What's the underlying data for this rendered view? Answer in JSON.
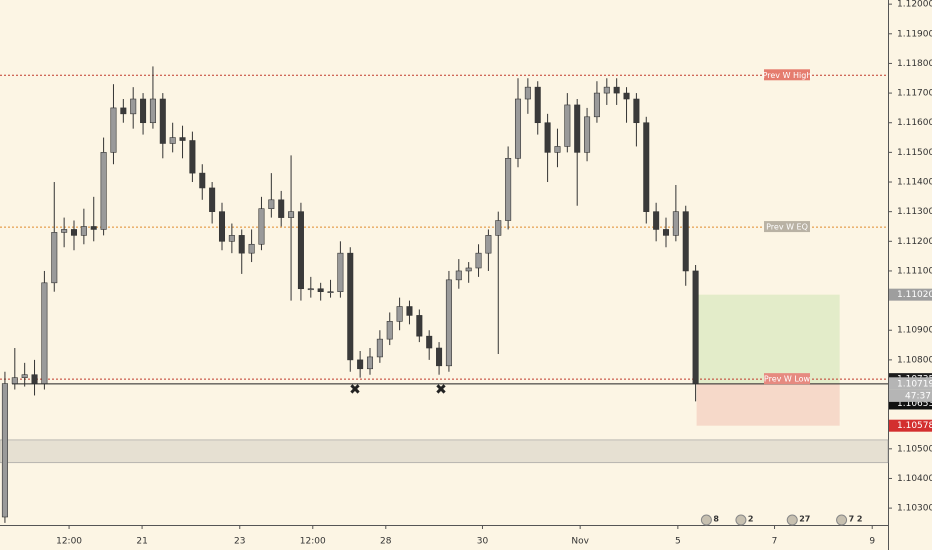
{
  "chart_data": {
    "type": "candlestick",
    "x": [
      0,
      1,
      2,
      3,
      4,
      5,
      6,
      7,
      8,
      9,
      10,
      11,
      12,
      13,
      14,
      15,
      16,
      17,
      18,
      19,
      20,
      21,
      22,
      23,
      24,
      25,
      26,
      27,
      28,
      29,
      30,
      31,
      32,
      33,
      34,
      35,
      36,
      37,
      38,
      39,
      40,
      41,
      42,
      43,
      44,
      45,
      46,
      47,
      48,
      49,
      50,
      51,
      52,
      53,
      54,
      55,
      56,
      57,
      58,
      59,
      60,
      61,
      62,
      63,
      64,
      65,
      66,
      67,
      68,
      69,
      70
    ],
    "candles": [
      [
        1.1027,
        1.1076,
        1.1025,
        1.1072
      ],
      [
        1.1072,
        1.1084,
        1.107,
        1.1074
      ],
      [
        1.1074,
        1.1079,
        1.1071,
        1.1075
      ],
      [
        1.1075,
        1.108,
        1.1068,
        1.1072
      ],
      [
        1.1072,
        1.111,
        1.107,
        1.1106
      ],
      [
        1.1106,
        1.114,
        1.1103,
        1.1123
      ],
      [
        1.1123,
        1.1128,
        1.1118,
        1.1124
      ],
      [
        1.1124,
        1.1127,
        1.1117,
        1.1122
      ],
      [
        1.1122,
        1.1131,
        1.1119,
        1.1125
      ],
      [
        1.1125,
        1.1135,
        1.112,
        1.1124
      ],
      [
        1.1124,
        1.1155,
        1.1122,
        1.115
      ],
      [
        1.115,
        1.1173,
        1.1146,
        1.1165
      ],
      [
        1.1165,
        1.1168,
        1.116,
        1.1163
      ],
      [
        1.1163,
        1.1172,
        1.1158,
        1.1168
      ],
      [
        1.1168,
        1.117,
        1.1156,
        1.116
      ],
      [
        1.116,
        1.1179,
        1.1158,
        1.1168
      ],
      [
        1.1168,
        1.117,
        1.1148,
        1.1153
      ],
      [
        1.1153,
        1.116,
        1.115,
        1.1155
      ],
      [
        1.1155,
        1.1159,
        1.1148,
        1.1154
      ],
      [
        1.1154,
        1.1157,
        1.114,
        1.1143
      ],
      [
        1.1143,
        1.1146,
        1.1134,
        1.1138
      ],
      [
        1.1138,
        1.114,
        1.1126,
        1.113
      ],
      [
        1.113,
        1.1133,
        1.1117,
        1.112
      ],
      [
        1.112,
        1.1126,
        1.1116,
        1.1122
      ],
      [
        1.1122,
        1.1124,
        1.1109,
        1.1116
      ],
      [
        1.1116,
        1.1124,
        1.1113,
        1.1119
      ],
      [
        1.1119,
        1.1135,
        1.1117,
        1.1131
      ],
      [
        1.1131,
        1.1143,
        1.1128,
        1.1134
      ],
      [
        1.1134,
        1.1137,
        1.1125,
        1.1128
      ],
      [
        1.1128,
        1.1149,
        1.11,
        1.113
      ],
      [
        1.113,
        1.1133,
        1.11,
        1.1104
      ],
      [
        1.1104,
        1.1108,
        1.1101,
        1.1104
      ],
      [
        1.1104,
        1.1106,
        1.11,
        1.1103
      ],
      [
        1.1103,
        1.1107,
        1.1101,
        1.1103
      ],
      [
        1.1103,
        1.112,
        1.1101,
        1.1116
      ],
      [
        1.1116,
        1.1118,
        1.1076,
        1.108
      ],
      [
        1.108,
        1.1083,
        1.1074,
        1.1077
      ],
      [
        1.1077,
        1.1084,
        1.1075,
        1.1081
      ],
      [
        1.1081,
        1.109,
        1.1079,
        1.1087
      ],
      [
        1.1087,
        1.1096,
        1.1085,
        1.1093
      ],
      [
        1.1093,
        1.1101,
        1.109,
        1.1098
      ],
      [
        1.1098,
        1.11,
        1.1092,
        1.1095
      ],
      [
        1.1095,
        1.1097,
        1.1086,
        1.1088
      ],
      [
        1.1088,
        1.109,
        1.108,
        1.1084
      ],
      [
        1.1084,
        1.1086,
        1.1075,
        1.1078
      ],
      [
        1.1078,
        1.111,
        1.1076,
        1.1107
      ],
      [
        1.1107,
        1.1114,
        1.1104,
        1.111
      ],
      [
        1.111,
        1.1113,
        1.1106,
        1.1111
      ],
      [
        1.1111,
        1.1119,
        1.1108,
        1.1116
      ],
      [
        1.1116,
        1.1124,
        1.111,
        1.1122
      ],
      [
        1.1122,
        1.113,
        1.1082,
        1.1127
      ],
      [
        1.1127,
        1.1152,
        1.1124,
        1.1148
      ],
      [
        1.1148,
        1.1175,
        1.1145,
        1.1168
      ],
      [
        1.1168,
        1.1175,
        1.1163,
        1.1172
      ],
      [
        1.1172,
        1.1174,
        1.1156,
        1.116
      ],
      [
        1.116,
        1.1163,
        1.114,
        1.115
      ],
      [
        1.115,
        1.1158,
        1.1145,
        1.1152
      ],
      [
        1.1152,
        1.117,
        1.115,
        1.1166
      ],
      [
        1.1166,
        1.1168,
        1.1132,
        1.115
      ],
      [
        1.115,
        1.1165,
        1.1147,
        1.1162
      ],
      [
        1.1162,
        1.1174,
        1.116,
        1.117
      ],
      [
        1.117,
        1.1175,
        1.1166,
        1.1172
      ],
      [
        1.1172,
        1.1175,
        1.1166,
        1.117
      ],
      [
        1.117,
        1.1172,
        1.116,
        1.1168
      ],
      [
        1.1168,
        1.117,
        1.1152,
        1.116
      ],
      [
        1.116,
        1.1162,
        1.1126,
        1.113
      ],
      [
        1.113,
        1.1133,
        1.112,
        1.1124
      ],
      [
        1.1124,
        1.1128,
        1.1118,
        1.1122
      ],
      [
        1.1122,
        1.1139,
        1.112,
        1.113
      ],
      [
        1.113,
        1.1132,
        1.1105,
        1.111
      ],
      [
        1.111,
        1.1112,
        1.1066,
        1.1072
      ]
    ],
    "up_color": "#9a9a9a",
    "down_color": "#3a3a3a",
    "xlim": [
      -0.5,
      89.5
    ],
    "xticks": [
      {
        "value": 6.5,
        "label": "12:00"
      },
      {
        "value": 13.9,
        "label": "21"
      },
      {
        "value": 23.8,
        "label": "23"
      },
      {
        "value": 31.2,
        "label": "12:00"
      },
      {
        "value": 38.6,
        "label": "28"
      },
      {
        "value": 48.4,
        "label": "30"
      },
      {
        "value": 58.3,
        "label": "Nov"
      },
      {
        "value": 68.2,
        "label": "5"
      },
      {
        "value": 78.0,
        "label": "7"
      },
      {
        "value": 87.9,
        "label": "9"
      }
    ],
    "ylim": [
      1.10243,
      1.12014
    ],
    "yticks": [
      {
        "value": 1.12,
        "label": "1.12000"
      },
      {
        "value": 1.119,
        "label": "1.11900"
      },
      {
        "value": 1.118,
        "label": "1.11800"
      },
      {
        "value": 1.117,
        "label": "1.11700"
      },
      {
        "value": 1.116,
        "label": "1.11600"
      },
      {
        "value": 1.115,
        "label": "1.11500"
      },
      {
        "value": 1.114,
        "label": "1.11400"
      },
      {
        "value": 1.113,
        "label": "1.11300"
      },
      {
        "value": 1.112,
        "label": "1.11200"
      },
      {
        "value": 1.111,
        "label": "1.11100"
      },
      {
        "value": 1.109,
        "label": "1.10900"
      },
      {
        "value": 1.108,
        "label": "1.10800"
      },
      {
        "value": 1.105,
        "label": "1.10500"
      },
      {
        "value": 1.104,
        "label": "1.10400"
      },
      {
        "value": 1.103,
        "label": "1.10300"
      }
    ],
    "levels": [
      {
        "label": "Prev W High",
        "value": 1.1176,
        "color": "#c0392b",
        "label_bg": "#e57c6e"
      },
      {
        "label": "Prev W EQ",
        "value": 1.11248,
        "color": "#e08a2c",
        "label_bg": "#b9b2a4"
      },
      {
        "label": "Prev W Low",
        "value": 1.10735,
        "color": "#c0392b",
        "label_bg": "#e68a80"
      }
    ],
    "support": {
      "value": 1.10719,
      "color": "#222222"
    },
    "zone": {
      "top": 1.1053,
      "bottom": 1.10453,
      "color": "#e6e0d2"
    },
    "position": {
      "x": [
        70.1,
        84.6
      ],
      "target": 1.1102,
      "entry": 1.10721,
      "stop": 1.10578,
      "profit_color": "#e3ecc9",
      "loss_color": "#f6d9c9"
    },
    "price_labels": [
      {
        "value": 1.1102,
        "label": "1.11020",
        "bg": "#9e9e9e"
      },
      {
        "value": 1.10735,
        "label": "1.10735",
        "bg": "#1c1c1c"
      },
      {
        "value": 1.10721,
        "label": "1.10721",
        "bg": "#b5b5b5"
      },
      {
        "value": 1.10719,
        "label": "1.10719",
        "bg": "#b5b5b5"
      },
      {
        "value": 1.10653,
        "label": "1.10653",
        "bg": "#111111"
      },
      {
        "value": 1.10578,
        "label": "1.10578",
        "bg": "#d32f2f"
      }
    ],
    "countdown": "47:37",
    "events": [
      {
        "x": 71.5,
        "label": "8"
      },
      {
        "x": 75.0,
        "label": "2"
      },
      {
        "x": 80.2,
        "label": "27"
      },
      {
        "x": 85.2,
        "label": "7 2"
      }
    ]
  }
}
